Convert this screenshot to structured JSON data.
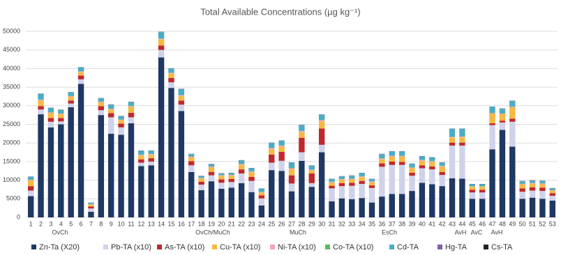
{
  "chart_data": {
    "type": "stacked-bar",
    "title": "Total Available Concentrations (µg kg⁻¹)",
    "categories": [
      "1",
      "2",
      "3",
      "4",
      "5",
      "6",
      "7",
      "8",
      "9",
      "10",
      "11",
      "12",
      "13",
      "14",
      "15",
      "16",
      "17",
      "18",
      "19",
      "20",
      "21",
      "22",
      "23",
      "24",
      "25",
      "26",
      "27",
      "28",
      "29",
      "30",
      "31",
      "32",
      "33",
      "34",
      "35",
      "36",
      "37",
      "38",
      "39",
      "40",
      "41",
      "42",
      "43",
      "44",
      "45",
      "46",
      "47",
      "48",
      "49",
      "50",
      "51",
      "52",
      "53"
    ],
    "group_labels": [
      "OvCh",
      "OvCh/MuCh",
      "MuCh",
      "EsCh",
      "AvH",
      "AvC",
      "AvH"
    ],
    "ylim": [
      0,
      50000
    ],
    "yticks": [
      0,
      5000,
      10000,
      15000,
      20000,
      25000,
      30000,
      35000,
      40000,
      45000,
      50000
    ],
    "grid": true,
    "legend": "bottom",
    "series": [
      {
        "name": "Zn-Ta (X20)",
        "color": "#1f3864",
        "values": [
          5700,
          27700,
          24200,
          25000,
          29600,
          35900,
          1500,
          27500,
          22500,
          22200,
          25300,
          13800,
          14000,
          43000,
          34800,
          28600,
          12200,
          7300,
          9700,
          7700,
          8000,
          9200,
          6800,
          3200,
          12700,
          12500,
          7000,
          15200,
          8200,
          17500,
          4300,
          5100,
          4900,
          5200,
          4000,
          5600,
          6300,
          6300,
          7100,
          9300,
          8900,
          8400,
          10500,
          10400,
          5000,
          5000,
          18300,
          23500,
          19000,
          5000,
          5300,
          5000,
          4500
        ]
      },
      {
        "name": "Pb-TA (x10)",
        "color": "#cfd2ea",
        "values": [
          1500,
          1300,
          1500,
          800,
          1000,
          1200,
          900,
          1300,
          4400,
          2000,
          1600,
          900,
          1000,
          2000,
          1500,
          1700,
          1800,
          1500,
          1600,
          1600,
          1500,
          2600,
          3000,
          1900,
          2000,
          2700,
          2100,
          2300,
          1000,
          2000,
          3500,
          3300,
          3600,
          3800,
          3900,
          8000,
          7800,
          7800,
          4100,
          3900,
          4000,
          3000,
          8800,
          8900,
          1700,
          1700,
          6500,
          2000,
          6700,
          1900,
          1900,
          2100,
          1300
        ]
      },
      {
        "name": "As-TA (x10)",
        "color": "#c0282d",
        "values": [
          1200,
          900,
          1000,
          900,
          800,
          1000,
          500,
          1100,
          1100,
          1000,
          1200,
          900,
          900,
          1200,
          1200,
          1100,
          1100,
          800,
          900,
          900,
          800,
          1100,
          1100,
          800,
          2200,
          2400,
          2200,
          3900,
          2600,
          4400,
          700,
          800,
          800,
          800,
          700,
          900,
          900,
          800,
          800,
          800,
          800,
          800,
          800,
          800,
          700,
          700,
          500,
          500,
          800,
          900,
          900,
          900,
          700
        ]
      },
      {
        "name": "Cu-TA  (x10)",
        "color": "#f5b942",
        "values": [
          1500,
          1500,
          1300,
          1000,
          1000,
          900,
          500,
          1000,
          1000,
          900,
          1600,
          1000,
          900,
          1600,
          1100,
          1200,
          1000,
          800,
          1200,
          900,
          900,
          1200,
          1200,
          700,
          1400,
          1400,
          1600,
          1500,
          800,
          1900,
          800,
          900,
          900,
          1000,
          800,
          1100,
          1300,
          1400,
          1200,
          1200,
          1200,
          1400,
          1300,
          1400,
          800,
          800,
          2500,
          1800,
          3000,
          1000,
          900,
          900,
          600
        ]
      },
      {
        "name": "Ni-TA  (x10)",
        "color": "#f4a6b8",
        "values": [
          200,
          200,
          200,
          200,
          200,
          200,
          100,
          200,
          200,
          200,
          200,
          200,
          200,
          200,
          200,
          200,
          200,
          200,
          200,
          200,
          200,
          200,
          200,
          200,
          300,
          300,
          300,
          300,
          200,
          300,
          200,
          200,
          200,
          200,
          200,
          200,
          200,
          200,
          200,
          200,
          200,
          200,
          200,
          200,
          100,
          100,
          200,
          100,
          200,
          200,
          200,
          200,
          200
        ]
      },
      {
        "name": "Co-TA  (x10)",
        "color": "#5cb85c",
        "values": [
          100,
          100,
          100,
          100,
          100,
          100,
          100,
          100,
          100,
          100,
          100,
          100,
          100,
          100,
          100,
          100,
          100,
          100,
          100,
          100,
          100,
          100,
          100,
          100,
          100,
          100,
          100,
          100,
          100,
          100,
          100,
          100,
          100,
          100,
          100,
          100,
          100,
          100,
          100,
          100,
          100,
          100,
          100,
          100,
          100,
          100,
          100,
          100,
          100,
          100,
          100,
          100,
          100
        ]
      },
      {
        "name": "Cd-TA",
        "color": "#4bacc6",
        "values": [
          700,
          1500,
          1100,
          900,
          900,
          1000,
          300,
          800,
          1000,
          800,
          1000,
          1000,
          800,
          1700,
          1100,
          1600,
          600,
          400,
          600,
          400,
          400,
          900,
          800,
          800,
          1300,
          1200,
          1400,
          1500,
          1000,
          1400,
          700,
          600,
          700,
          800,
          600,
          1100,
          1100,
          1100,
          900,
          900,
          900,
          800,
          2100,
          2000,
          500,
          500,
          1600,
          1200,
          1500,
          600,
          600,
          600,
          400
        ]
      },
      {
        "name": "Hg-TA",
        "color": "#7f5fa8",
        "values": [
          50,
          50,
          50,
          50,
          50,
          50,
          50,
          50,
          50,
          50,
          50,
          50,
          50,
          50,
          50,
          50,
          50,
          50,
          50,
          50,
          50,
          50,
          50,
          50,
          50,
          50,
          50,
          50,
          50,
          50,
          50,
          50,
          50,
          50,
          50,
          50,
          50,
          50,
          50,
          50,
          50,
          50,
          50,
          50,
          50,
          50,
          50,
          50,
          50,
          50,
          50,
          50,
          50
        ]
      },
      {
        "name": "Cs-TA",
        "color": "#222222",
        "values": [
          30,
          30,
          30,
          30,
          30,
          30,
          30,
          30,
          30,
          30,
          30,
          30,
          30,
          30,
          30,
          30,
          30,
          30,
          30,
          30,
          30,
          30,
          30,
          30,
          30,
          30,
          30,
          30,
          30,
          30,
          30,
          30,
          30,
          30,
          30,
          30,
          30,
          30,
          30,
          30,
          30,
          30,
          30,
          30,
          30,
          30,
          30,
          30,
          30,
          30,
          30,
          30,
          30
        ]
      }
    ]
  }
}
